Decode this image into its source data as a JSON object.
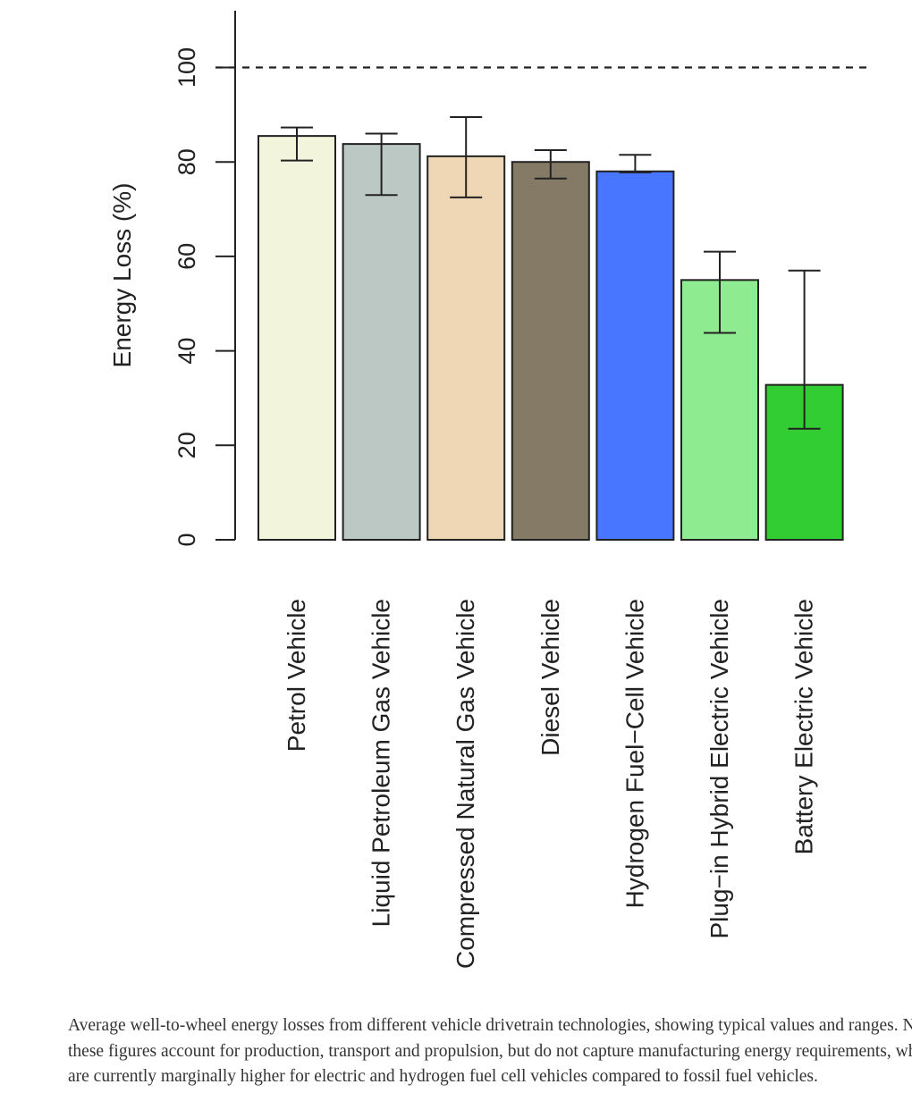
{
  "chart_data": {
    "type": "bar",
    "title": "",
    "xlabel": "",
    "ylabel": "Energy Loss (%)",
    "ylim": [
      0,
      110
    ],
    "yticks": [
      0,
      20,
      40,
      60,
      80,
      100
    ],
    "reference_line": 100,
    "grid": false,
    "categories": [
      "Petrol Vehicle",
      "Liquid Petroleum Gas Vehicle",
      "Compressed Natural Gas Vehicle",
      "Diesel Vehicle",
      "Hydrogen Fuel−Cell Vehicle",
      "Plug−in Hybrid Electric Vehicle",
      "Battery Electric Vehicle"
    ],
    "values": [
      85.5,
      83.8,
      81.2,
      80.0,
      78.0,
      55.0,
      32.8
    ],
    "error_low": [
      80.3,
      73.0,
      72.5,
      76.5,
      77.8,
      43.8,
      23.5
    ],
    "error_high": [
      87.3,
      86.0,
      89.5,
      82.5,
      81.5,
      61.0,
      57.0
    ],
    "colors": [
      "#f2f5dc",
      "#bcc8c3",
      "#efd6b5",
      "#857a66",
      "#4876ff",
      "#8feb8f",
      "#32cd32"
    ]
  },
  "caption": "Average well-to-wheel energy losses from different vehicle drivetrain technologies, showing typical values and ranges. Note: these figures account for production, transport and propulsion, but do not capture manufacturing energy requirements, which are currently marginally higher for electric and hydrogen fuel cell vehicles compared to fossil fuel vehicles."
}
